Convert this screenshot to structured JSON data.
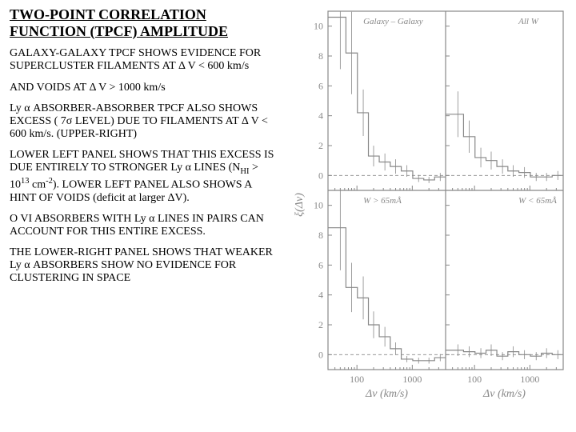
{
  "title": "TWO-POINT CORRELATION FUNCTION (TPCF) AMPLITUDE",
  "p1": "GALAXY-GALAXY TPCF SHOWS EVIDENCE FOR SUPERCLUSTER FILAMENTS AT Δ V < 600 km/s",
  "p2": "AND VOIDS AT Δ V > 1000 km/s",
  "p3a": "Ly α ABSORBER-ABSORBER TPCF ALSO SHOWS  EXCESS ( 7σ LEVEL)  DUE TO FILAMENTS AT  Δ V < 600 km/s. (UPPER-RIGHT)",
  "p4a": "LOWER LEFT PANEL SHOWS THAT THIS EXCESS IS DUE ENTIRELY TO STRONGER Ly α LINES   (N",
  "p4b": "HI",
  "p4c": " > 10",
  "p4d": "13",
  "p4e": " cm",
  "p4f": "-2",
  "p4g": "). LOWER LEFT PANEL ALSO SHOWS A HINT OF VOIDS (deficit at larger ΔV).",
  "p5": "O VI ABSORBERS WITH Ly α  LINES IN PAIRS CAN ACCOUNT FOR THIS ENTIRE EXCESS.",
  "p6": "THE LOWER-RIGHT PANEL SHOWS THAT WEAKER Ly α ABSORBERS SHOW NO EVIDENCE FOR CLUSTERING IN SPACE",
  "chart": {
    "type": "line",
    "background_color": "#ffffff",
    "stroke_color": "#888888",
    "grid_color": "#aaaaaa",
    "font_size_label": 14,
    "font_size_tick": 12,
    "xlabel": "Δv (km/s)",
    "ylabel": "ξ(Δv)",
    "xscale": "log",
    "xlim": [
      30,
      4000
    ],
    "xticks": [
      100,
      1000
    ],
    "ylim": [
      -1,
      11
    ],
    "yticks": [
      0,
      2,
      4,
      6,
      8,
      10
    ],
    "panels": [
      {
        "row": 0,
        "col": 0,
        "tag": "Galaxy – Galaxy",
        "series": [
          {
            "x": [
              50,
              80,
              130,
              200,
              320,
              500,
              800,
              1300,
              2000,
              3200
            ],
            "y": [
              10.6,
              8.2,
              4.2,
              1.3,
              0.9,
              0.6,
              0.3,
              -0.2,
              -0.3,
              -0.1
            ]
          }
        ]
      },
      {
        "row": 0,
        "col": 1,
        "tag": "All W",
        "series": [
          {
            "x": [
              50,
              80,
              130,
              200,
              320,
              500,
              800,
              1300,
              2000,
              3200
            ],
            "y": [
              4.1,
              2.6,
              1.2,
              1.0,
              0.6,
              0.3,
              0.2,
              -0.1,
              -0.1,
              0.0
            ]
          }
        ]
      },
      {
        "row": 1,
        "col": 0,
        "tag": "W > 65mÅ",
        "series": [
          {
            "x": [
              50,
              80,
              130,
              200,
              320,
              500,
              800,
              1300,
              2000,
              3200
            ],
            "y": [
              8.5,
              4.5,
              3.8,
              2.0,
              1.2,
              0.4,
              -0.3,
              -0.4,
              -0.4,
              -0.2
            ]
          }
        ]
      },
      {
        "row": 1,
        "col": 1,
        "tag": "W < 65mÅ",
        "series": [
          {
            "x": [
              50,
              80,
              130,
              200,
              320,
              500,
              800,
              1300,
              2000,
              3200
            ],
            "y": [
              0.3,
              0.2,
              0.1,
              0.3,
              -0.1,
              0.2,
              0.0,
              -0.1,
              0.1,
              0.0
            ]
          }
        ]
      }
    ]
  }
}
